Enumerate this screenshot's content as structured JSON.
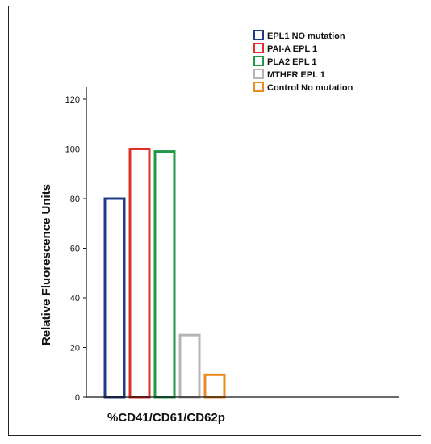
{
  "chart_data": {
    "type": "bar",
    "categories": [
      "%CD41/CD61/CD62p"
    ],
    "xlabel": "%CD41/CD61/CD62p",
    "ylabel": "Relative Fluorescence Units",
    "ylim": [
      0,
      120
    ],
    "yticks": [
      0,
      20,
      40,
      60,
      80,
      100,
      120
    ],
    "grid": false,
    "legend_position": "top-right",
    "bar_style": "outline",
    "series": [
      {
        "name": "EPL1 NO mutation",
        "values": [
          80
        ],
        "color": "#1f3c88"
      },
      {
        "name": "PAI-A EPL 1",
        "values": [
          100
        ],
        "color": "#e0302a"
      },
      {
        "name": "PLA2 EPL 1",
        "values": [
          99
        ],
        "color": "#1e9a48"
      },
      {
        "name": "MTHFR EPL 1",
        "values": [
          25
        ],
        "color": "#b5b5b5"
      },
      {
        "name": "Control No mutation",
        "values": [
          9
        ],
        "color": "#ef8a22"
      }
    ]
  }
}
